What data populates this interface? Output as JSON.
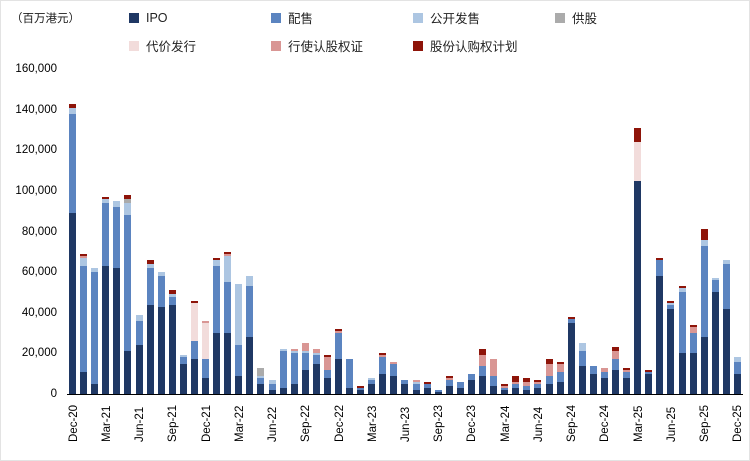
{
  "chart_data": {
    "type": "bar",
    "stacked": true,
    "unit_label": "（百万港元）",
    "title": "",
    "xlabel": "",
    "ylabel": "",
    "ylim": [
      0,
      160000
    ],
    "ytick_step": 20000,
    "xtick_every": 3,
    "grid": false,
    "legend_position": "top",
    "legend_rows": [
      [
        "IPO",
        "配售",
        "公开发售",
        "供股"
      ],
      [
        "代价发行",
        "行使认股权证",
        "股份认购权计划"
      ]
    ],
    "categories": [
      "Dec-20",
      "Jan-21",
      "Feb-21",
      "Mar-21",
      "Apr-21",
      "May-21",
      "Jun-21",
      "Jul-21",
      "Aug-21",
      "Sep-21",
      "Oct-21",
      "Nov-21",
      "Dec-21",
      "Jan-22",
      "Feb-22",
      "Mar-22",
      "Apr-22",
      "May-22",
      "Jun-22",
      "Jul-22",
      "Aug-22",
      "Sep-22",
      "Oct-22",
      "Nov-22",
      "Dec-22",
      "Jan-23",
      "Feb-23",
      "Mar-23",
      "Apr-23",
      "May-23",
      "Jun-23",
      "Jul-23",
      "Aug-23",
      "Sep-23",
      "Oct-23",
      "Nov-23",
      "Dec-23",
      "Jan-24",
      "Feb-24",
      "Mar-24",
      "Apr-24",
      "May-24",
      "Jun-24",
      "Jul-24",
      "Aug-24",
      "Sep-24",
      "Oct-24",
      "Nov-24",
      "Dec-24",
      "Jan-25",
      "Feb-25",
      "Mar-25",
      "Apr-25",
      "May-25",
      "Jun-25",
      "Jul-25",
      "Aug-25",
      "Sep-25",
      "Oct-25",
      "Nov-25",
      "Dec-25"
    ],
    "series": [
      {
        "name": "IPO",
        "color": "#1F3864",
        "values": [
          89000,
          11000,
          5000,
          63000,
          62000,
          21000,
          24000,
          44000,
          43000,
          44000,
          15000,
          17000,
          8000,
          30000,
          30000,
          9000,
          28000,
          5000,
          2000,
          3000,
          5000,
          12000,
          15000,
          8000,
          17000,
          3000,
          2000,
          5000,
          10000,
          9000,
          5000,
          2000,
          3000,
          1000,
          4000,
          3000,
          7000,
          9000,
          4000,
          2000,
          3000,
          2000,
          3000,
          5000,
          6000,
          35000,
          14000,
          10000,
          8000,
          12000,
          8000,
          105000,
          10000,
          58000,
          42000,
          20000,
          20000,
          28000,
          50000,
          42000,
          10000
        ]
      },
      {
        "name": "配售",
        "color": "#5B84C0",
        "values": [
          49000,
          52000,
          55000,
          31000,
          30000,
          67000,
          12000,
          18000,
          15000,
          4000,
          3000,
          9000,
          9000,
          33000,
          25000,
          15000,
          25000,
          3000,
          3000,
          18000,
          15000,
          8000,
          4000,
          4000,
          13000,
          14000,
          1000,
          2000,
          8000,
          6000,
          2000,
          3000,
          2000,
          1000,
          3000,
          3000,
          3000,
          5000,
          5000,
          1000,
          2000,
          2000,
          2000,
          4000,
          5000,
          2000,
          7000,
          4000,
          3000,
          5000,
          3000,
          0,
          1000,
          8000,
          2000,
          30000,
          10000,
          45000,
          6000,
          22000,
          6000
        ]
      },
      {
        "name": "公开发售",
        "color": "#ADC6E2",
        "values": [
          3000,
          4000,
          2000,
          2000,
          3000,
          6000,
          3000,
          2000,
          2000,
          1000,
          1000,
          0,
          0,
          3000,
          13000,
          30000,
          5000,
          1000,
          2000,
          1000,
          1000,
          1000,
          1000,
          0,
          0,
          0,
          0,
          1000,
          0,
          0,
          0,
          1000,
          0,
          0,
          0,
          0,
          0,
          0,
          0,
          0,
          0,
          0,
          0,
          0,
          0,
          0,
          4000,
          0,
          0,
          0,
          0,
          0,
          0,
          0,
          1000,
          2000,
          0,
          3000,
          1000,
          2000,
          2000
        ]
      },
      {
        "name": "供股",
        "color": "#ABABAB",
        "values": [
          0,
          0,
          0,
          0,
          0,
          2000,
          0,
          0,
          0,
          0,
          0,
          0,
          0,
          0,
          0,
          0,
          0,
          4000,
          0,
          0,
          0,
          0,
          0,
          0,
          0,
          0,
          0,
          0,
          0,
          0,
          0,
          0,
          0,
          0,
          0,
          0,
          0,
          0,
          0,
          0,
          0,
          0,
          0,
          0,
          0,
          0,
          0,
          0,
          0,
          0,
          0,
          0,
          0,
          0,
          0,
          0,
          0,
          0,
          0,
          0,
          0
        ]
      },
      {
        "name": "代价发行",
        "color": "#F2DCDB",
        "values": [
          0,
          0,
          0,
          0,
          0,
          0,
          0,
          0,
          0,
          0,
          0,
          19000,
          18000,
          0,
          0,
          0,
          0,
          0,
          0,
          0,
          0,
          0,
          0,
          0,
          0,
          0,
          0,
          0,
          0,
          0,
          0,
          0,
          0,
          0,
          0,
          0,
          0,
          0,
          0,
          0,
          0,
          0,
          0,
          0,
          0,
          0,
          0,
          0,
          0,
          0,
          0,
          19000,
          0,
          0,
          0,
          0,
          0,
          0,
          0,
          0,
          0
        ]
      },
      {
        "name": "行使认股权证",
        "color": "#D99694",
        "values": [
          0,
          1000,
          0,
          0,
          0,
          0,
          0,
          0,
          0,
          0,
          0,
          0,
          1000,
          0,
          1000,
          0,
          0,
          0,
          0,
          0,
          1000,
          4000,
          2000,
          6000,
          1000,
          0,
          0,
          0,
          1000,
          1000,
          0,
          1000,
          0,
          0,
          1000,
          0,
          0,
          5000,
          8000,
          1000,
          1000,
          2000,
          1000,
          6000,
          4000,
          0,
          0,
          0,
          2000,
          4000,
          1000,
          0,
          0,
          0,
          0,
          0,
          3000,
          0,
          0,
          0,
          0
        ]
      },
      {
        "name": "股份认购权计划",
        "color": "#8E1409",
        "values": [
          2000,
          1000,
          0,
          1000,
          0,
          2000,
          0,
          2000,
          0,
          2000,
          0,
          1000,
          0,
          1000,
          1000,
          0,
          0,
          0,
          0,
          0,
          0,
          0,
          0,
          1000,
          1000,
          0,
          1000,
          0,
          1000,
          0,
          0,
          0,
          1000,
          0,
          1000,
          0,
          0,
          3000,
          0,
          1000,
          3000,
          2000,
          1000,
          2000,
          1000,
          1000,
          0,
          0,
          0,
          2000,
          1000,
          7000,
          1000,
          1000,
          1000,
          1000,
          1000,
          5000,
          0,
          0,
          0
        ]
      }
    ]
  }
}
